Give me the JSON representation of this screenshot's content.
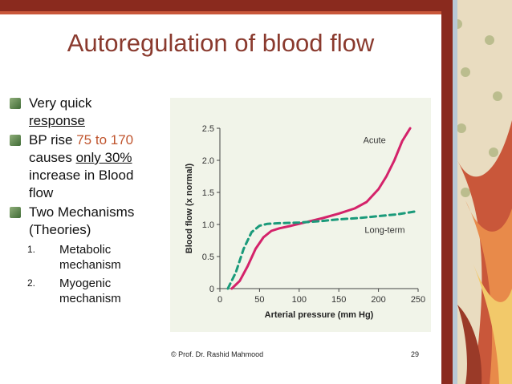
{
  "slide": {
    "title": "Autoregulation of blood flow",
    "bullet1_line1": "Very quick",
    "bullet1_line2": "response",
    "bullet2_pre": "BP rise ",
    "bullet2_range": "75 to 170",
    "bullet2_line2_pre": "causes ",
    "bullet2_line2_u": "only 30%",
    "bullet2_line3": "increase in Blood",
    "bullet2_line4": "flow",
    "bullet3_line1": "Two Mechanisms",
    "bullet3_line2": "(Theories)",
    "sub1_num": "1.",
    "sub1_line1": "Metabolic",
    "sub1_line2": "mechanism",
    "sub2_num": "2.",
    "sub2_line1": "Myogenic",
    "sub2_line2": "mechanism",
    "footer_credit": "© Prof. Dr. Rashid Mahmood",
    "page_number": "29"
  },
  "colors": {
    "title": "#8a3a2e",
    "accent_text": "#c0552e",
    "acute_line": "#d4226a",
    "longterm_line": "#1a9a7a",
    "chart_bg": "#f1f4e9"
  },
  "chart_data": {
    "type": "line",
    "xlabel": "Arterial pressure (mm Hg)",
    "ylabel": "Blood flow (x normal)",
    "xlim": [
      0,
      250
    ],
    "ylim": [
      0,
      2.5
    ],
    "x_ticks": [
      "0",
      "50",
      "100",
      "150",
      "200",
      "250"
    ],
    "y_ticks": [
      "0",
      "0.5",
      "1.0",
      "1.5",
      "2.0",
      "2.5"
    ],
    "grid": false,
    "series": [
      {
        "name": "Acute",
        "style": "solid",
        "x": [
          15,
          25,
          35,
          45,
          55,
          65,
          75,
          90,
          110,
          130,
          150,
          170,
          185,
          200,
          210,
          220,
          230,
          240
        ],
        "y": [
          0.0,
          0.12,
          0.35,
          0.62,
          0.8,
          0.9,
          0.94,
          0.98,
          1.04,
          1.1,
          1.17,
          1.25,
          1.35,
          1.55,
          1.75,
          2.0,
          2.3,
          2.5
        ]
      },
      {
        "name": "Long-term",
        "style": "dashed",
        "x": [
          10,
          20,
          30,
          40,
          50,
          60,
          75,
          100,
          125,
          150,
          175,
          200,
          225,
          245
        ],
        "y": [
          0.0,
          0.25,
          0.62,
          0.88,
          0.98,
          1.01,
          1.02,
          1.03,
          1.05,
          1.08,
          1.1,
          1.13,
          1.16,
          1.2
        ]
      }
    ]
  }
}
